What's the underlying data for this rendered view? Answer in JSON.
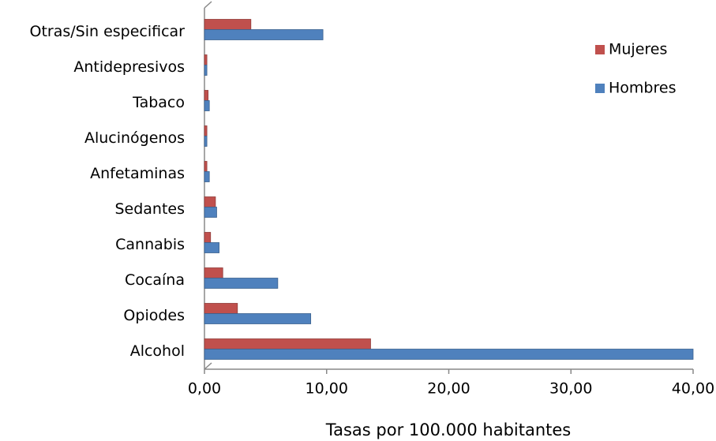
{
  "chart_data": {
    "type": "bar",
    "orientation": "horizontal",
    "x_label": "Tasas por 100.000 habitantes",
    "categories": [
      "Alcohol",
      "Opiodes",
      "Cocaína",
      "Cannabis",
      "Sedantes",
      "Anfetaminas",
      "Alucinógenos",
      "Tabaco",
      "Antidepresivos",
      "Otras/Sin especificar"
    ],
    "series": [
      {
        "name": "Mujeres",
        "color": "#c0504d",
        "values": [
          13.6,
          2.7,
          1.5,
          0.5,
          0.9,
          0.2,
          0.2,
          0.3,
          0.2,
          3.8
        ]
      },
      {
        "name": "Hombres",
        "color": "#4f81bd",
        "values": [
          40.0,
          8.7,
          6.0,
          1.2,
          1.0,
          0.4,
          0.2,
          0.4,
          0.2,
          9.7
        ]
      }
    ],
    "xlim": [
      0,
      40
    ],
    "xticks": [
      {
        "value": 0,
        "label": "0,00"
      },
      {
        "value": 10,
        "label": "10,00"
      },
      {
        "value": 20,
        "label": "20,00"
      },
      {
        "value": 30,
        "label": "30,00"
      },
      {
        "value": 40,
        "label": "40,00"
      }
    ],
    "legend": "right"
  }
}
